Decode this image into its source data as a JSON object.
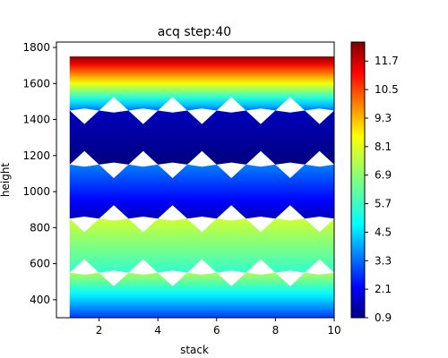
{
  "chart_data": {
    "type": "heatmap",
    "title": "acq step:40",
    "xlabel": "stack",
    "ylabel": "height",
    "xlim": [
      0.55,
      10
    ],
    "ylim": [
      300,
      1830
    ],
    "xticks": [
      "2",
      "4",
      "6",
      "8",
      "10"
    ],
    "xtick_values": [
      2,
      4,
      6,
      8,
      10
    ],
    "yticks": [
      "400",
      "600",
      "800",
      "1000",
      "1200",
      "1400",
      "1600",
      "1800"
    ],
    "ytick_values": [
      400,
      600,
      800,
      1000,
      1200,
      1400,
      1600,
      1800
    ],
    "colormap": "jet",
    "colorbar": {
      "vmin": 0.9,
      "vmax": 12.5,
      "ticks": [
        "0.9",
        "2.1",
        "3.3",
        "4.5",
        "5.7",
        "6.9",
        "8.1",
        "9.3",
        "10.5",
        "11.7"
      ],
      "tick_values": [
        0.9,
        2.1,
        3.3,
        4.5,
        5.7,
        6.9,
        8.1,
        9.3,
        10.5,
        11.7
      ]
    },
    "stack_range": [
      1,
      10
    ],
    "bands": [
      {
        "height_range": [
          300,
          550
        ],
        "values_bottom_top": [
          3.0,
          7.2
        ]
      },
      {
        "height_range": [
          550,
          850
        ],
        "values_bottom_top": [
          5.8,
          7.6
        ]
      },
      {
        "height_range": [
          850,
          1150
        ],
        "values_bottom_top": [
          1.6,
          3.8
        ]
      },
      {
        "height_range": [
          1150,
          1450
        ],
        "values_bottom_top": [
          0.9,
          1.6
        ]
      },
      {
        "height_range": [
          1450,
          1750
        ],
        "values_bottom_top": [
          3.6,
          12.4
        ]
      }
    ]
  }
}
